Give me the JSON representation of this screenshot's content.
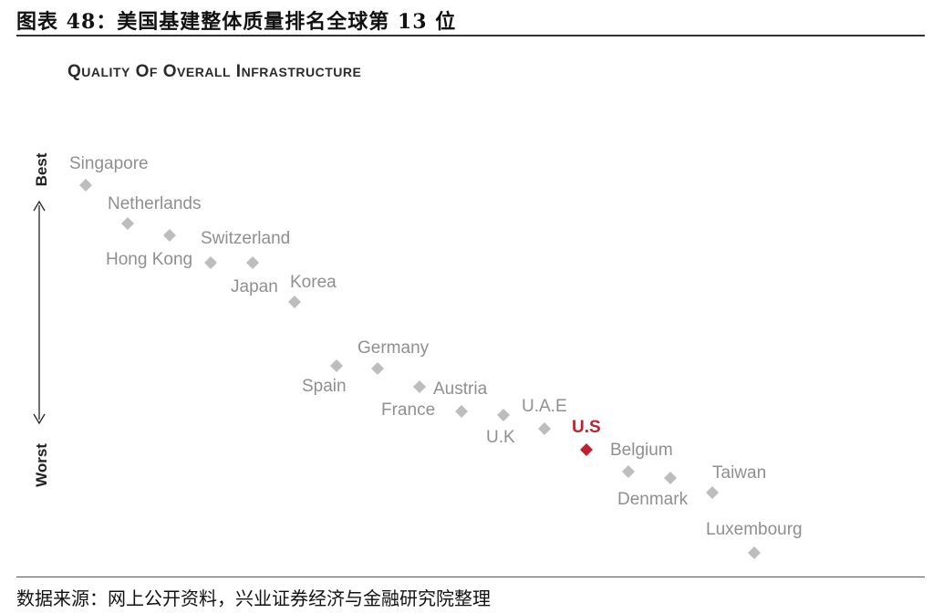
{
  "figure": {
    "title": "图表 48：美国基建整体质量排名全球第 13 位",
    "source": "数据来源：网上公开资料，兴业证券经济与金融研究院整理"
  },
  "colors": {
    "marker": "#bdbdbd",
    "label": "#8f8f8f",
    "highlight": "#c0212f"
  },
  "chart_data": {
    "type": "scatter",
    "title": "Quality of Overall Infrastructure",
    "y_axis": {
      "best_label": "Best",
      "worst_label": "Worst"
    },
    "grid": false,
    "highlight": "U.S",
    "points": [
      {
        "name": "Singapore",
        "rank": 1
      },
      {
        "name": "Netherlands",
        "rank": 2
      },
      {
        "name": "Hong Kong",
        "rank": 3
      },
      {
        "name": "Switzerland",
        "rank": 4
      },
      {
        "name": "Japan",
        "rank": 5
      },
      {
        "name": "Korea",
        "rank": 6
      },
      {
        "name": "Spain",
        "rank": 7
      },
      {
        "name": "Germany",
        "rank": 8
      },
      {
        "name": "Austria",
        "rank": 9
      },
      {
        "name": "France",
        "rank": 10
      },
      {
        "name": "U.K",
        "rank": 11
      },
      {
        "name": "U.A.E",
        "rank": 12
      },
      {
        "name": "U.S",
        "rank": 13
      },
      {
        "name": "Belgium",
        "rank": 14
      },
      {
        "name": "Denmark",
        "rank": 15
      },
      {
        "name": "Taiwan",
        "rank": 16
      },
      {
        "name": "Luxembourg",
        "rank": 17
      }
    ]
  }
}
